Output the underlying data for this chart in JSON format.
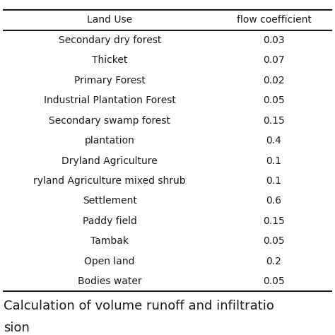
{
  "col1_header": "Land Use",
  "col2_header": "flow coefficient",
  "rows": [
    [
      "Secondary dry forest",
      "0.03"
    ],
    [
      "Thicket",
      "0.07"
    ],
    [
      "Primary Forest",
      "0.02"
    ],
    [
      "Industrial Plantation Forest",
      "0.05"
    ],
    [
      "Secondary swamp forest",
      "0.15"
    ],
    [
      "plantation",
      "0.4"
    ],
    [
      "Dryland Agriculture",
      "0.1"
    ],
    [
      "ryland Agriculture mixed shrub",
      "0.1"
    ],
    [
      "Settlement",
      "0.6"
    ],
    [
      "Paddy field",
      "0.15"
    ],
    [
      "Tambak",
      "0.05"
    ],
    [
      "Open land",
      "0.2"
    ],
    [
      "Bodies water",
      "0.05"
    ]
  ],
  "caption_line1": "Calculation of volume runoff and infiltratio",
  "caption_line2": "sion",
  "bg_color": "#ffffff",
  "text_color": "#1a1a1a",
  "line_color": "#1a1a1a",
  "font_size": 10,
  "header_font_size": 10,
  "caption_font_size": 13
}
